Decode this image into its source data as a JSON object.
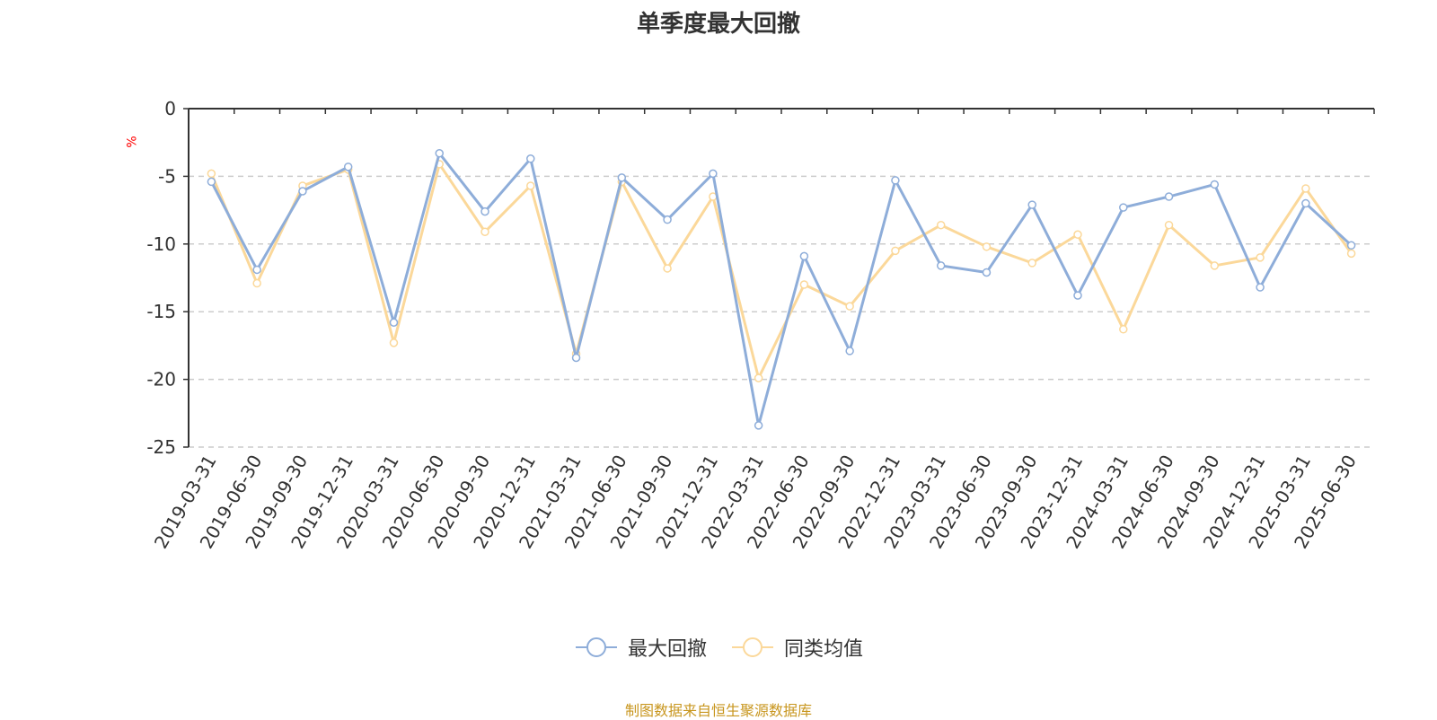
{
  "chart_data": {
    "type": "line",
    "title": "单季度最大回撤",
    "ylabel": "%",
    "ylim": [
      -25,
      0
    ],
    "yticks": [
      0,
      -5,
      -10,
      -15,
      -20,
      -25
    ],
    "grid": true,
    "legend_position": "bottom",
    "categories": [
      "2019-03-31",
      "2019-06-30",
      "2019-09-30",
      "2019-12-31",
      "2020-03-31",
      "2020-06-30",
      "2020-09-30",
      "2020-12-31",
      "2021-03-31",
      "2021-06-30",
      "2021-09-30",
      "2021-12-31",
      "2022-03-31",
      "2022-06-30",
      "2022-09-30",
      "2022-12-31",
      "2023-03-31",
      "2023-06-30",
      "2023-09-30",
      "2023-12-31",
      "2024-03-31",
      "2024-06-30",
      "2024-09-30",
      "2024-12-31",
      "2025-03-31",
      "2025-06-30"
    ],
    "series": [
      {
        "name": "最大回撤",
        "color": "#8eadd9",
        "values": [
          -5.4,
          -11.9,
          -6.1,
          -4.3,
          -15.8,
          -3.3,
          -7.6,
          -3.7,
          -18.4,
          -5.1,
          -8.2,
          -4.8,
          -23.4,
          -10.9,
          -17.9,
          -5.3,
          -11.6,
          -12.1,
          -7.1,
          -13.8,
          -7.3,
          -6.5,
          -5.6,
          -13.2,
          -7.0,
          -10.1
        ]
      },
      {
        "name": "同类均值",
        "color": "#fbd89a",
        "values": [
          -4.8,
          -12.9,
          -5.7,
          -4.5,
          -17.3,
          -4.1,
          -9.1,
          -5.7,
          -18.1,
          -5.4,
          -11.8,
          -6.5,
          -19.9,
          -13.0,
          -14.6,
          -10.5,
          -8.6,
          -10.2,
          -11.4,
          -9.3,
          -16.3,
          -8.6,
          -11.6,
          -11.0,
          -5.9,
          -10.7
        ]
      }
    ]
  },
  "source_note": "制图数据来自恒生聚源数据库"
}
